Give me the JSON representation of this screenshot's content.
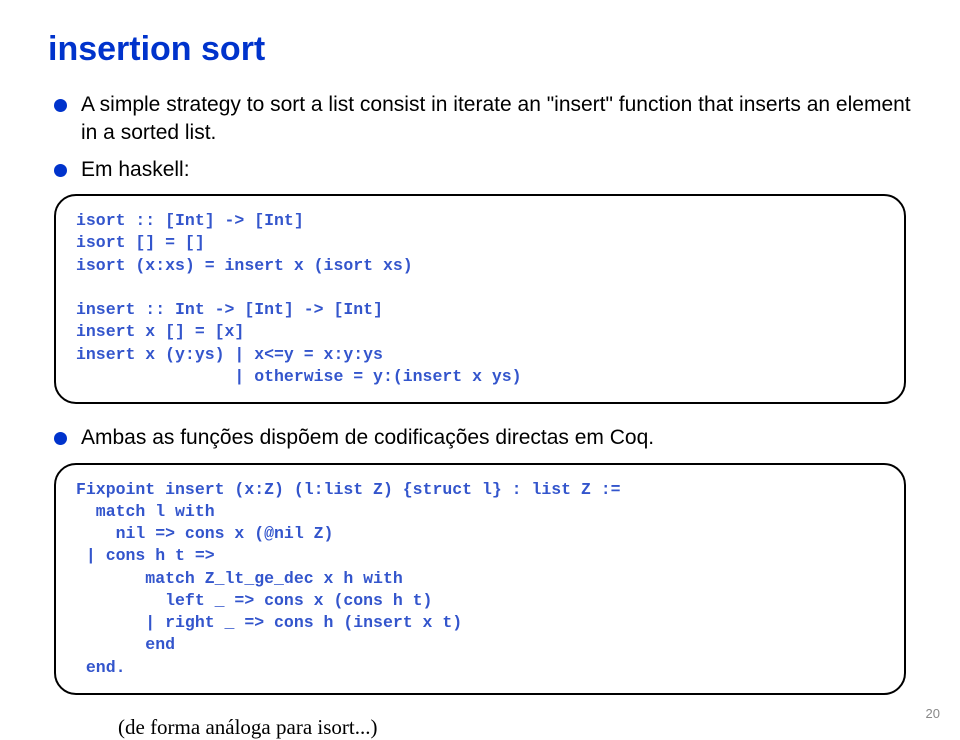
{
  "title": "insertion sort",
  "bullets": {
    "b1": "A simple strategy to sort a list consist in iterate an \"insert\" function that inserts an element in a sorted list.",
    "b2": "Em haskell:",
    "b3": "Ambas as funções dispõem de codificações directas em Coq."
  },
  "code1": "isort :: [Int] -> [Int]\nisort [] = []\nisort (x:xs) = insert x (isort xs)\n\ninsert :: Int -> [Int] -> [Int]\ninsert x [] = [x]\ninsert x (y:ys) | x<=y = x:y:ys\n                | otherwise = y:(insert x ys)",
  "code2": "Fixpoint insert (x:Z) (l:list Z) {struct l} : list Z :=\n  match l with\n    nil => cons x (@nil Z)\n | cons h t =>\n       match Z_lt_ge_dec x h with\n         left _ => cons x (cons h t)\n       | right _ => cons h (insert x t)\n       end\n end.",
  "footnote": "(de forma análoga para isort...)",
  "pagenum": "20",
  "colors": {
    "title": "#0033cc",
    "bullet_dot": "#0033cc",
    "code_text": "#3355cc",
    "box_border": "#000000",
    "bg": "#ffffff"
  }
}
